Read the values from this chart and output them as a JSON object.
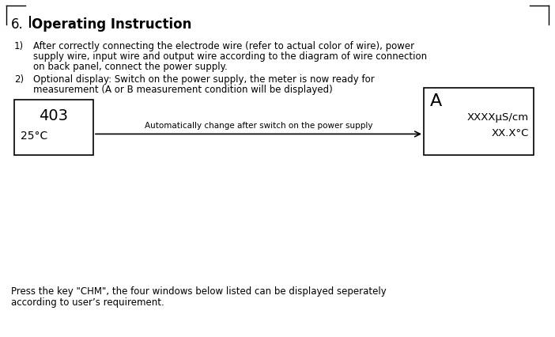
{
  "bg_color": "#ffffff",
  "title": "6.  Operating Instruction",
  "item1_line1": "After correctly connecting the electrode wire (refer to actual color of wire), power",
  "item1_line2": "supply wire, input wire and output wire according to the diagram of wire connection",
  "item1_line3": "on back panel, connect the power supply.",
  "item2_line1": "Optional display: Switch on the power supply, the meter is now ready for",
  "item2_line2": "measurement (A or B measurement condition will be displayed)",
  "left_box_line1": "403",
  "left_box_line2": "25°C",
  "arrow_label": "Automatically change after switch on the power supply",
  "right_box_A": "A",
  "right_box_us": "XXXXμS/cm",
  "right_box_temp": "XX.X°C",
  "footer_line1": "Press the key \"CHM\", the four windows below listed can be displayed seperately",
  "footer_line2": "according to user’s requirement.",
  "fig_w": 7.02,
  "fig_h": 4.27,
  "dpi": 100
}
